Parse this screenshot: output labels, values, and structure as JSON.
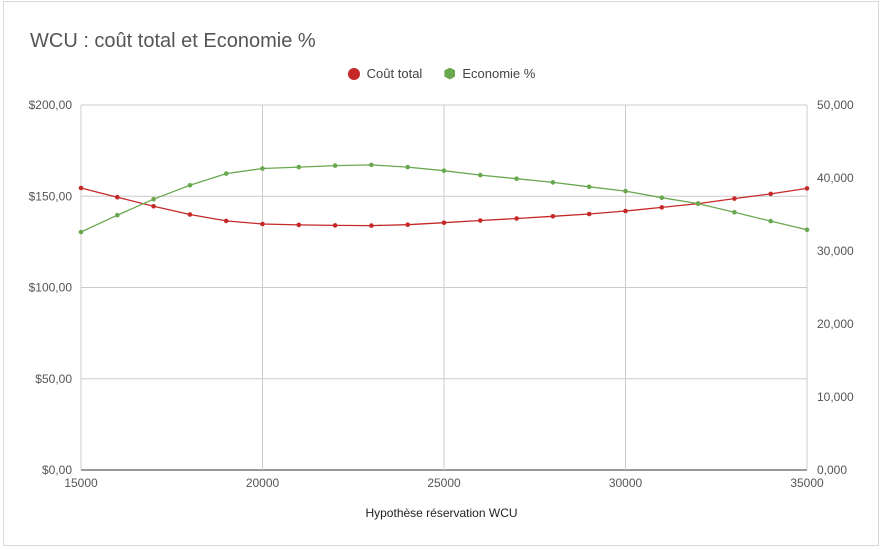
{
  "chart_data": {
    "type": "line",
    "title": "WCU : coût total et Economie %",
    "xlabel": "Hypothèse réservation WCU",
    "ylabel_left": "",
    "ylabel_right": "",
    "xlim": [
      15000,
      35000
    ],
    "ylim_left": [
      0,
      200
    ],
    "ylim_right": [
      0,
      50
    ],
    "grid": true,
    "legend_position": "top",
    "x": [
      15000,
      16000,
      17000,
      18000,
      19000,
      20000,
      21000,
      22000,
      23000,
      24000,
      25000,
      26000,
      27000,
      28000,
      29000,
      30000,
      31000,
      32000,
      33000,
      34000,
      35000
    ],
    "x_ticks": [
      15000,
      20000,
      25000,
      30000,
      35000
    ],
    "x_tick_labels": [
      "15000",
      "20000",
      "25000",
      "30000",
      "35000"
    ],
    "y_left_ticks": [
      0,
      50,
      100,
      150,
      200
    ],
    "y_left_tick_labels": [
      "$0,00",
      "$50,00",
      "$100,00",
      "$150,00",
      "$200,00"
    ],
    "y_right_ticks": [
      0,
      10,
      20,
      30,
      40,
      50
    ],
    "y_right_tick_labels": [
      "0,000",
      "10,000",
      "20,000",
      "30,000",
      "40,000",
      "50,000"
    ],
    "series": [
      {
        "name": "Coût total",
        "axis": "left",
        "color": "#c62828",
        "marker": "circle",
        "values": [
          154.5,
          149.5,
          144.5,
          140.0,
          136.5,
          134.8,
          134.3,
          134.0,
          133.9,
          134.4,
          135.5,
          136.7,
          137.8,
          139.0,
          140.3,
          141.9,
          143.9,
          146.0,
          148.7,
          151.3,
          154.3
        ]
      },
      {
        "name": "Economie %",
        "axis": "right",
        "color": "#6aa84f",
        "marker": "hexagon",
        "values": [
          32.6,
          34.9,
          37.1,
          39.0,
          40.6,
          41.3,
          41.5,
          41.7,
          41.8,
          41.5,
          41.0,
          40.4,
          39.9,
          39.4,
          38.8,
          38.2,
          37.3,
          36.5,
          35.3,
          34.1,
          32.9
        ]
      }
    ]
  }
}
